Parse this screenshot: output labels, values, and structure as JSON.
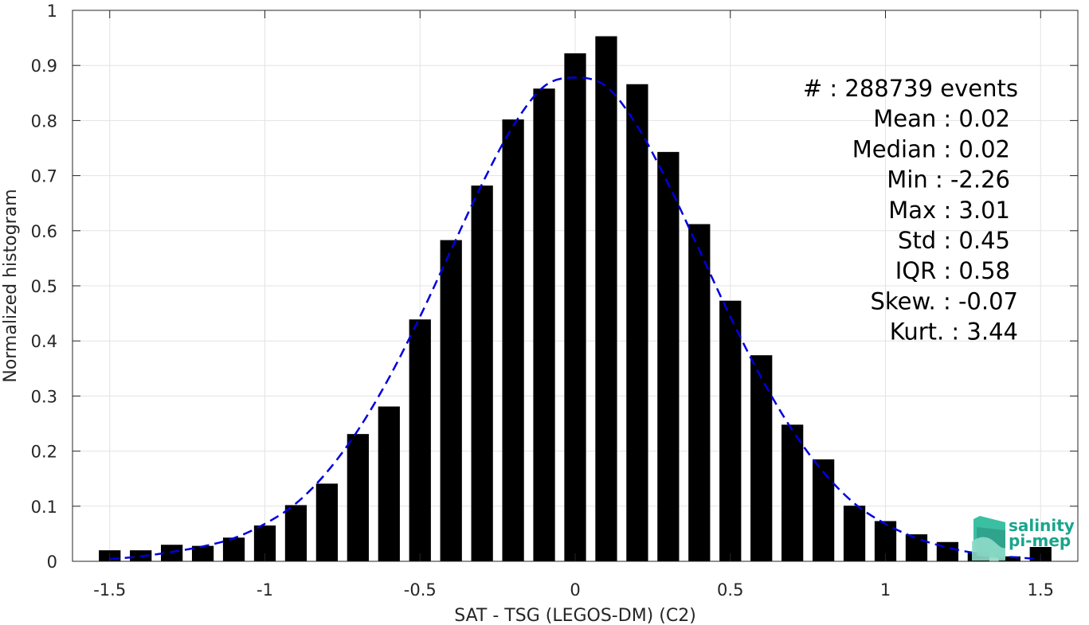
{
  "chart_data": {
    "type": "bar",
    "xlabel": "SAT - TSG (LEGOS-DM) (C2)",
    "ylabel": "Normalized histogram",
    "xlim": [
      -1.62,
      1.62
    ],
    "ylim": [
      0,
      1
    ],
    "xticks": [
      -1.5,
      -1,
      -0.5,
      0,
      0.5,
      1,
      1.5
    ],
    "xtick_labels": [
      "-1.5",
      "-1",
      "-0.5",
      "0",
      "0.5",
      "1",
      "1.5"
    ],
    "yticks": [
      0,
      0.1,
      0.2,
      0.3,
      0.4,
      0.5,
      0.6,
      0.7,
      0.8,
      0.9,
      1
    ],
    "ytick_labels": [
      "0",
      "0.1",
      "0.2",
      "0.3",
      "0.4",
      "0.5",
      "0.6",
      "0.7",
      "0.8",
      "0.9",
      "1"
    ],
    "grid": true,
    "bar_width": 0.07,
    "bars": {
      "x": [
        -1.5,
        -1.4,
        -1.3,
        -1.2,
        -1.1,
        -1.0,
        -0.9,
        -0.8,
        -0.7,
        -0.6,
        -0.5,
        -0.4,
        -0.3,
        -0.2,
        -0.1,
        0.0,
        0.1,
        0.2,
        0.3,
        0.4,
        0.5,
        0.6,
        0.7,
        0.8,
        0.9,
        1.0,
        1.1,
        1.2,
        1.3,
        1.4,
        1.5
      ],
      "values": [
        0.02,
        0.02,
        0.03,
        0.028,
        0.043,
        0.065,
        0.102,
        0.141,
        0.231,
        0.281,
        0.439,
        0.583,
        0.682,
        0.802,
        0.858,
        0.922,
        0.953,
        0.866,
        0.743,
        0.612,
        0.473,
        0.374,
        0.248,
        0.185,
        0.101,
        0.073,
        0.049,
        0.035,
        0.017,
        0.009,
        0.026
      ],
      "color": "#000000"
    },
    "fit_curve": {
      "style": "dashed",
      "color": "#0000dd",
      "x": [
        -1.5,
        -1.4,
        -1.3,
        -1.2,
        -1.1,
        -1.0,
        -0.9,
        -0.8,
        -0.7,
        -0.6,
        -0.5,
        -0.4,
        -0.3,
        -0.2,
        -0.1,
        0.0,
        0.1,
        0.2,
        0.3,
        0.4,
        0.5,
        0.6,
        0.7,
        0.8,
        0.9,
        1.0,
        1.1,
        1.2,
        1.3,
        1.4,
        1.5
      ],
      "y": [
        0.004,
        0.009,
        0.017,
        0.027,
        0.042,
        0.068,
        0.105,
        0.162,
        0.238,
        0.333,
        0.444,
        0.565,
        0.685,
        0.79,
        0.862,
        0.878,
        0.862,
        0.79,
        0.685,
        0.565,
        0.444,
        0.333,
        0.238,
        0.162,
        0.105,
        0.068,
        0.042,
        0.025,
        0.014,
        0.008,
        0.004
      ]
    },
    "stats_lines": [
      "#  : 288739 events",
      "Mean : 0.02",
      "Median : 0.02",
      "Min : -2.26",
      "Max : 3.01",
      "Std : 0.45",
      "IQR : 0.58",
      "Skew. : -0.07",
      "Kurt. : 3.44"
    ]
  },
  "logo": {
    "line1": "salinity",
    "line2": "pi-mep",
    "color": "#1aa58c"
  }
}
